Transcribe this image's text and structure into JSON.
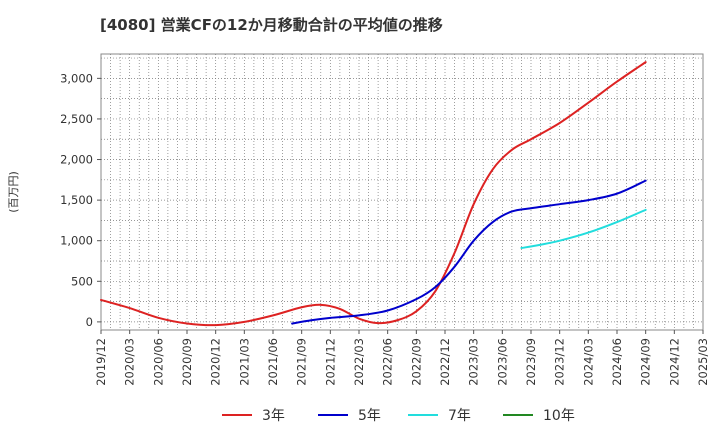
{
  "chart_data": {
    "type": "line",
    "title": "[4080]  営業CFの12か月移動合計の平均値の推移",
    "ylabel": "(百万円)",
    "xlabel": "",
    "ylim": [
      -100,
      3300
    ],
    "yticks": [
      0,
      500,
      1000,
      1500,
      2000,
      2500,
      3000
    ],
    "ytick_labels": [
      "0",
      "500",
      "1,000",
      "1,500",
      "2,000",
      "2,500",
      "3,000"
    ],
    "x_range": [
      "2019-12",
      "2025-03"
    ],
    "categories": [
      "2019/12",
      "2020/03",
      "2020/06",
      "2020/09",
      "2020/12",
      "2021/03",
      "2021/06",
      "2021/09",
      "2021/12",
      "2022/03",
      "2022/06",
      "2022/09",
      "2022/12",
      "2023/03",
      "2023/06",
      "2023/09",
      "2023/12",
      "2024/03",
      "2024/06",
      "2024/09",
      "2024/12",
      "2025/03"
    ],
    "grid": true,
    "legend_position": "bottom",
    "series": [
      {
        "name": "3年",
        "color": "#dd2222",
        "x": [
          "2019-12",
          "2020-03",
          "2020-06",
          "2020-09",
          "2020-12",
          "2021-03",
          "2021-06",
          "2021-09",
          "2021-11",
          "2022-01",
          "2022-03",
          "2022-05",
          "2022-07",
          "2022-09",
          "2022-11",
          "2023-01",
          "2023-03",
          "2023-05",
          "2023-07",
          "2023-09",
          "2023-12",
          "2024-03",
          "2024-06",
          "2024-09"
        ],
        "values": [
          270,
          170,
          50,
          -20,
          -40,
          0,
          80,
          180,
          210,
          160,
          40,
          -15,
          20,
          130,
          380,
          850,
          1450,
          1880,
          2120,
          2250,
          2450,
          2700,
          2960,
          3200
        ]
      },
      {
        "name": "5年",
        "color": "#0000cc",
        "x": [
          "2021-08",
          "2021-10",
          "2021-12",
          "2022-03",
          "2022-06",
          "2022-09",
          "2022-11",
          "2023-01",
          "2023-03",
          "2023-05",
          "2023-07",
          "2023-09",
          "2023-12",
          "2024-03",
          "2024-06",
          "2024-09"
        ],
        "values": [
          -20,
          20,
          50,
          80,
          140,
          280,
          430,
          680,
          1000,
          1230,
          1360,
          1400,
          1450,
          1500,
          1580,
          1740
        ]
      },
      {
        "name": "7年",
        "color": "#22dddd",
        "x": [
          "2023-08",
          "2023-10",
          "2023-12",
          "2024-03",
          "2024-06",
          "2024-09"
        ],
        "values": [
          910,
          950,
          1000,
          1100,
          1230,
          1380
        ]
      },
      {
        "name": "10年",
        "color": "#228822",
        "x": [],
        "values": []
      }
    ]
  }
}
